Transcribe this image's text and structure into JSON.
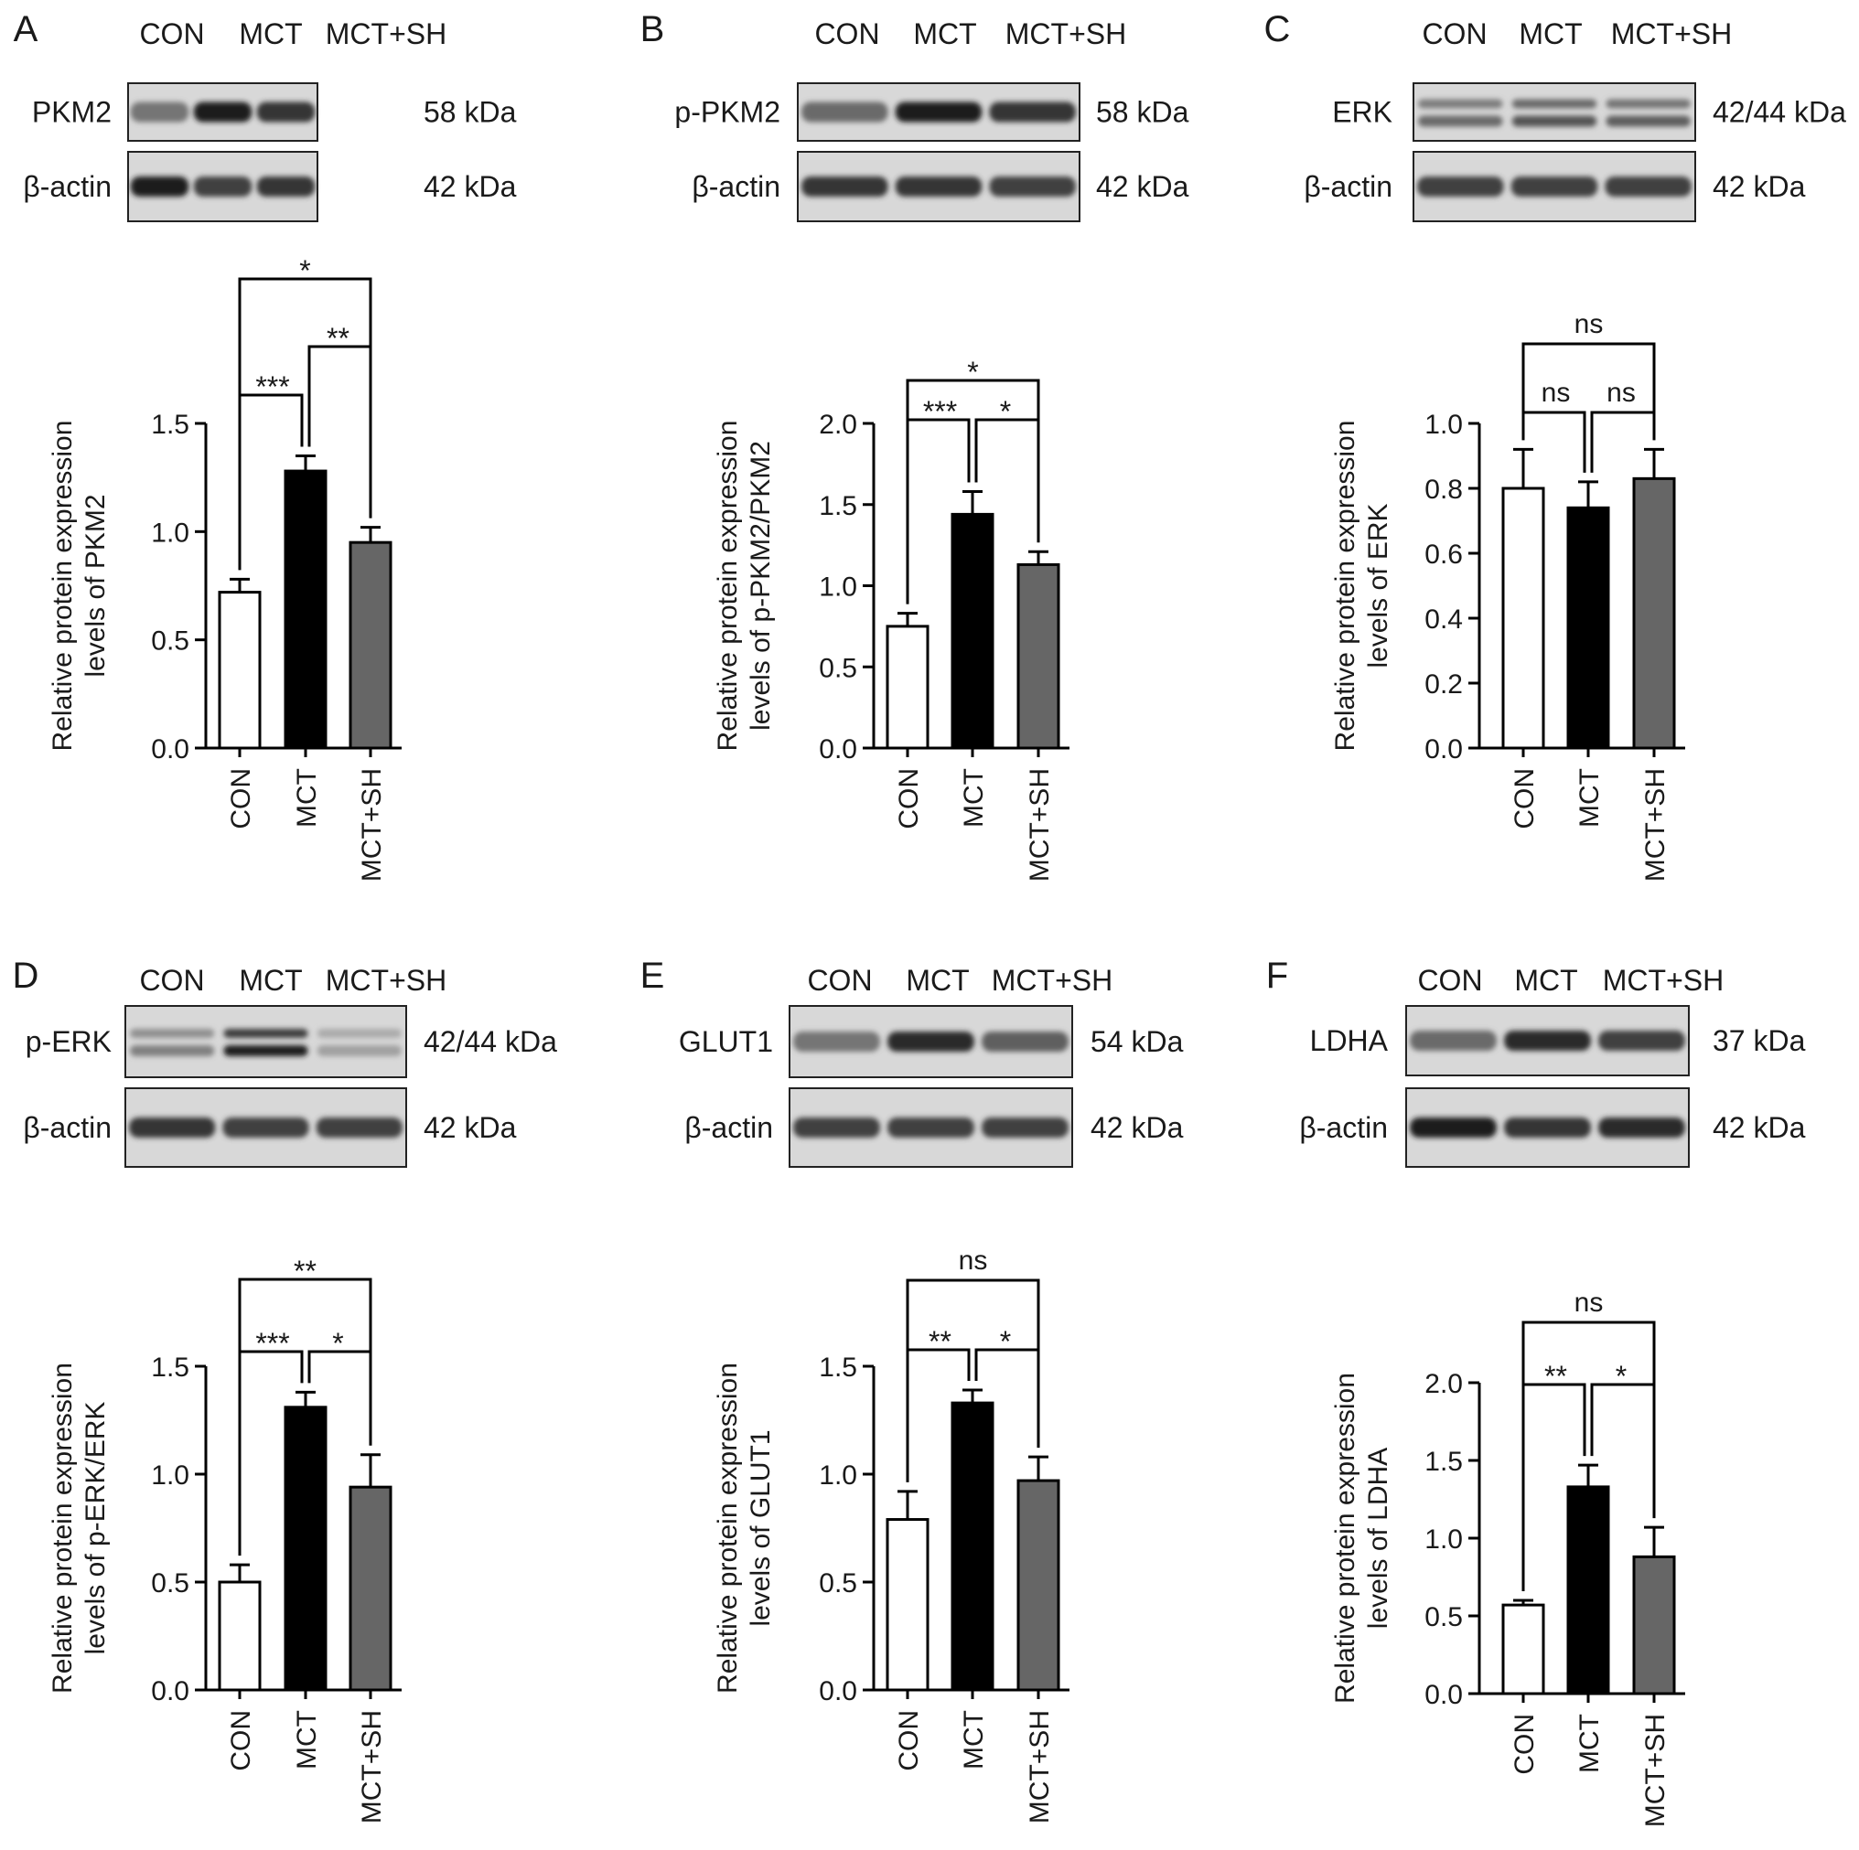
{
  "figure": {
    "groups": [
      "CON",
      "MCT",
      "MCT+SH"
    ],
    "bar_colors": [
      "#ffffff",
      "#000000",
      "#666666"
    ],
    "axis_color": "#000000"
  },
  "chart_data": [
    {
      "panel": "A",
      "type": "bar",
      "blot": {
        "lanes": [
          "CON",
          "MCT",
          "MCT+SH"
        ],
        "rows": [
          {
            "label": "PKM2",
            "size": "58 kDa",
            "intensity": [
              0.55,
              0.95,
              0.85
            ],
            "double": false
          },
          {
            "label": "β-actin",
            "size": "42 kDa",
            "intensity": [
              0.95,
              0.8,
              0.85
            ],
            "double": false
          }
        ]
      },
      "categories": [
        "CON",
        "MCT",
        "MCT+SH"
      ],
      "values": [
        0.72,
        1.28,
        0.95
      ],
      "errors": [
        0.06,
        0.07,
        0.07
      ],
      "ylabel": [
        "Relative protein expression",
        "levels of PKM2"
      ],
      "ylim": [
        0,
        1.5
      ],
      "yticks": [
        0.0,
        0.5,
        1.0,
        1.5
      ],
      "ytick_labels": [
        "0.0",
        "0.5",
        "1.0",
        "1.5"
      ],
      "significance": [
        {
          "from": 0,
          "to": 1,
          "label": "***"
        },
        {
          "from": 1,
          "to": 2,
          "label": "**"
        },
        {
          "from": 0,
          "to": 2,
          "label": "*"
        }
      ]
    },
    {
      "panel": "B",
      "type": "bar",
      "blot": {
        "lanes": [
          "CON",
          "MCT",
          "MCT+SH"
        ],
        "rows": [
          {
            "label": "p-PKM2",
            "size": "58 kDa",
            "intensity": [
              0.6,
              0.95,
              0.85
            ],
            "double": false
          },
          {
            "label": "β-actin",
            "size": "42 kDa",
            "intensity": [
              0.85,
              0.85,
              0.8
            ],
            "double": false
          }
        ]
      },
      "categories": [
        "CON",
        "MCT",
        "MCT+SH"
      ],
      "values": [
        0.75,
        1.44,
        1.13
      ],
      "errors": [
        0.08,
        0.14,
        0.08
      ],
      "ylabel": [
        "Relative protein expression",
        "levels of p-PKM2/PKM2"
      ],
      "ylim": [
        0,
        2.0
      ],
      "yticks": [
        0.0,
        0.5,
        1.0,
        1.5,
        2.0
      ],
      "ytick_labels": [
        "0.0",
        "0.5",
        "1.0",
        "1.5",
        "2.0"
      ],
      "significance": [
        {
          "from": 0,
          "to": 1,
          "label": "***"
        },
        {
          "from": 1,
          "to": 2,
          "label": "*"
        },
        {
          "from": 0,
          "to": 2,
          "label": "*"
        }
      ]
    },
    {
      "panel": "C",
      "type": "bar",
      "blot": {
        "lanes": [
          "CON",
          "MCT",
          "MCT+SH"
        ],
        "rows": [
          {
            "label": "ERK",
            "size": "42/44 kDa",
            "intensity": [
              0.6,
              0.7,
              0.65
            ],
            "double": true
          },
          {
            "label": "β-actin",
            "size": "42 kDa",
            "intensity": [
              0.8,
              0.8,
              0.8
            ],
            "double": false
          }
        ]
      },
      "categories": [
        "CON",
        "MCT",
        "MCT+SH"
      ],
      "values": [
        0.8,
        0.74,
        0.83
      ],
      "errors": [
        0.12,
        0.08,
        0.09
      ],
      "ylabel": [
        "Relative protein expression",
        "levels of ERK"
      ],
      "ylim": [
        0,
        1.0
      ],
      "yticks": [
        0.0,
        0.2,
        0.4,
        0.6,
        0.8,
        1.0
      ],
      "ytick_labels": [
        "0.0",
        "0.2",
        "0.4",
        "0.6",
        "0.8",
        "1.0"
      ],
      "significance": [
        {
          "from": 0,
          "to": 1,
          "label": "ns"
        },
        {
          "from": 1,
          "to": 2,
          "label": "ns"
        },
        {
          "from": 0,
          "to": 2,
          "label": "ns"
        }
      ]
    },
    {
      "panel": "D",
      "type": "bar",
      "blot": {
        "lanes": [
          "CON",
          "MCT",
          "MCT+SH"
        ],
        "rows": [
          {
            "label": "p-ERK",
            "size": "42/44 kDa",
            "intensity": [
              0.5,
              0.95,
              0.35
            ],
            "double": true
          },
          {
            "label": "β-actin",
            "size": "42 kDa",
            "intensity": [
              0.85,
              0.8,
              0.8
            ],
            "double": false
          }
        ]
      },
      "categories": [
        "CON",
        "MCT",
        "MCT+SH"
      ],
      "values": [
        0.5,
        1.31,
        0.94
      ],
      "errors": [
        0.08,
        0.07,
        0.15
      ],
      "ylabel": [
        "Relative protein expression",
        "levels of p-ERK/ERK"
      ],
      "ylim": [
        0,
        1.5
      ],
      "yticks": [
        0.0,
        0.5,
        1.0,
        1.5
      ],
      "ytick_labels": [
        "0.0",
        "0.5",
        "1.0",
        "1.5"
      ],
      "significance": [
        {
          "from": 0,
          "to": 1,
          "label": "***"
        },
        {
          "from": 1,
          "to": 2,
          "label": "*"
        },
        {
          "from": 0,
          "to": 2,
          "label": "**"
        }
      ]
    },
    {
      "panel": "E",
      "type": "bar",
      "blot": {
        "lanes": [
          "CON",
          "MCT",
          "MCT+SH"
        ],
        "rows": [
          {
            "label": "GLUT1",
            "size": "54 kDa",
            "intensity": [
              0.55,
              0.9,
              0.65
            ],
            "double": false
          },
          {
            "label": "β-actin",
            "size": "42 kDa",
            "intensity": [
              0.8,
              0.8,
              0.8
            ],
            "double": false
          }
        ]
      },
      "categories": [
        "CON",
        "MCT",
        "MCT+SH"
      ],
      "values": [
        0.79,
        1.33,
        0.97
      ],
      "errors": [
        0.13,
        0.06,
        0.11
      ],
      "ylabel": [
        "Relative protein expression",
        "levels of GLUT1"
      ],
      "ylim": [
        0,
        1.5
      ],
      "yticks": [
        0.0,
        0.5,
        1.0,
        1.5
      ],
      "ytick_labels": [
        "0.0",
        "0.5",
        "1.0",
        "1.5"
      ],
      "significance": [
        {
          "from": 0,
          "to": 1,
          "label": "**"
        },
        {
          "from": 1,
          "to": 2,
          "label": "*"
        },
        {
          "from": 0,
          "to": 2,
          "label": "ns"
        }
      ]
    },
    {
      "panel": "F",
      "type": "bar",
      "blot": {
        "lanes": [
          "CON",
          "MCT",
          "MCT+SH"
        ],
        "rows": [
          {
            "label": "LDHA",
            "size": "37 kDa",
            "intensity": [
              0.6,
              0.9,
              0.8
            ],
            "double": false
          },
          {
            "label": "β-actin",
            "size": "42 kDa",
            "intensity": [
              0.95,
              0.85,
              0.9
            ],
            "double": false
          }
        ]
      },
      "categories": [
        "CON",
        "MCT",
        "MCT+SH"
      ],
      "values": [
        0.57,
        1.33,
        0.88
      ],
      "errors": [
        0.03,
        0.14,
        0.19
      ],
      "ylabel": [
        "Relative protein expression",
        "levels of LDHA"
      ],
      "ylim": [
        0,
        2.0
      ],
      "yticks": [
        0.0,
        0.5,
        1.0,
        1.5,
        2.0
      ],
      "ytick_labels": [
        "0.0",
        "0.5",
        "1.0",
        "1.5",
        "2.0"
      ],
      "significance": [
        {
          "from": 0,
          "to": 1,
          "label": "**"
        },
        {
          "from": 1,
          "to": 2,
          "label": "*"
        },
        {
          "from": 0,
          "to": 2,
          "label": "ns"
        }
      ]
    }
  ]
}
